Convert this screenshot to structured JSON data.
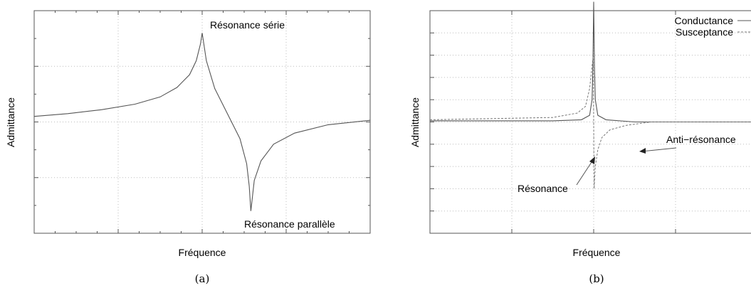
{
  "chart_data": [
    {
      "type": "line",
      "caption": "(a)",
      "xlabel": "Fréquence",
      "ylabel": "Admittance",
      "grid": true,
      "xlim": [
        0,
        4
      ],
      "ylim": [
        0,
        4
      ],
      "annotations": [
        {
          "text": "Résonance série",
          "x": 2.0,
          "y": 3.5
        },
        {
          "text": "Résonance parallèle",
          "x": 2.5,
          "y": 0.35
        }
      ],
      "series": [
        {
          "x": [
            0,
            0.4,
            0.8,
            1.2,
            1.5,
            1.7,
            1.85,
            1.93,
            1.98,
            2.0,
            2.05,
            2.15,
            2.3,
            2.45,
            2.53,
            2.56,
            2.58,
            2.62,
            2.7,
            2.85,
            3.1,
            3.5,
            4.0
          ],
          "y": [
            2.1,
            2.15,
            2.22,
            2.32,
            2.45,
            2.62,
            2.85,
            3.1,
            3.4,
            3.6,
            3.1,
            2.6,
            2.15,
            1.7,
            1.25,
            0.85,
            0.4,
            0.95,
            1.3,
            1.6,
            1.8,
            1.95,
            2.03
          ]
        }
      ]
    },
    {
      "type": "line",
      "caption": "(b)",
      "xlabel": "Fréquence",
      "ylabel": "Admittance",
      "grid": true,
      "legend": "top-right",
      "xlim": [
        0,
        4
      ],
      "ylim": [
        -1,
        1
      ],
      "annotations": [
        {
          "text": "Anti−résonance",
          "x": 2.55,
          "y": 0.02
        },
        {
          "text": "Résonance",
          "x": 1.95,
          "y": -0.08
        }
      ],
      "series": [
        {
          "name": "Conductance",
          "style": "solid",
          "x": [
            0,
            1.5,
            1.85,
            1.95,
            1.98,
            1.99,
            2.0,
            2.01,
            2.02,
            2.05,
            2.15,
            2.5,
            4.0
          ],
          "y": [
            0.01,
            0.01,
            0.02,
            0.06,
            0.2,
            0.5,
            1.08,
            0.5,
            0.2,
            0.06,
            0.02,
            0.0,
            0.0
          ]
        },
        {
          "name": "Susceptance",
          "style": "dashed",
          "x": [
            0,
            1.5,
            1.8,
            1.9,
            1.95,
            1.98,
            1.995,
            2.0,
            2.005,
            2.02,
            2.05,
            2.1,
            2.2,
            2.4,
            2.7,
            4.0
          ],
          "y": [
            0.02,
            0.04,
            0.08,
            0.14,
            0.3,
            0.5,
            0.6,
            0.0,
            -0.6,
            -0.4,
            -0.25,
            -0.14,
            -0.07,
            -0.03,
            0.0,
            0.0
          ]
        }
      ]
    }
  ]
}
